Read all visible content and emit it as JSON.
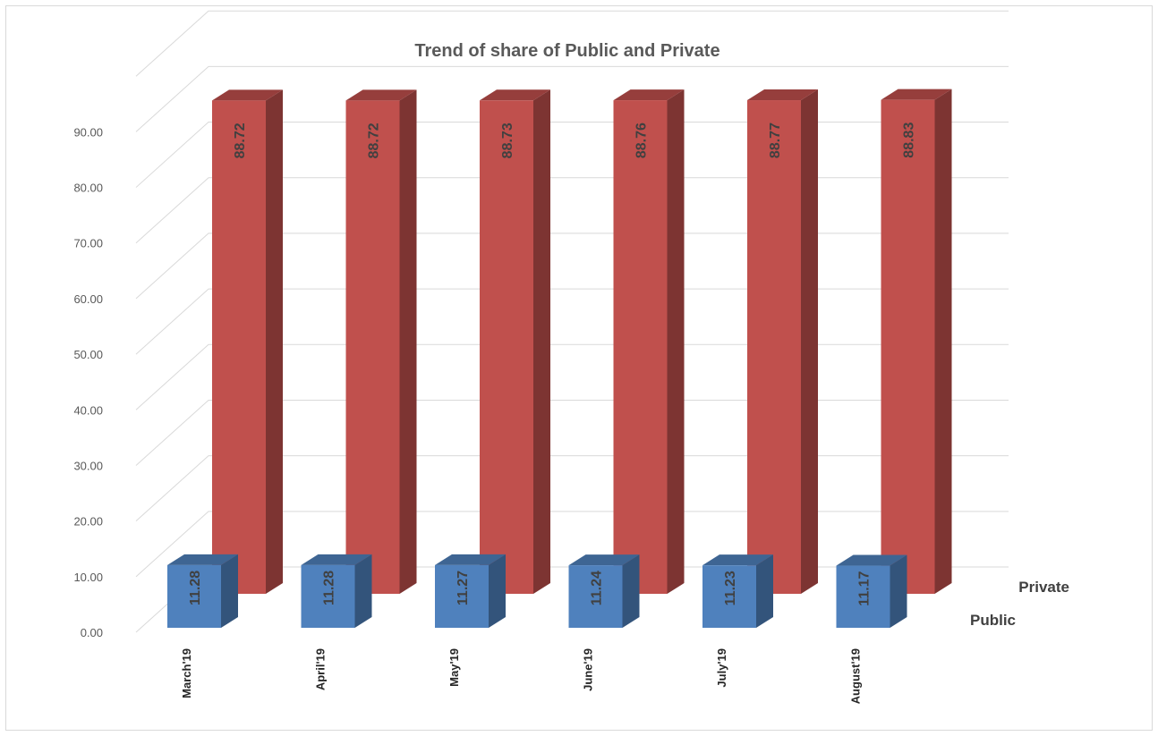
{
  "chart_data": {
    "type": "bar",
    "title": "Trend of  share of Public and Private",
    "categories": [
      "March'19",
      "April'19",
      "May'19",
      "June'19",
      "July'19",
      "August'19"
    ],
    "series": [
      {
        "name": "Public",
        "values": [
          11.28,
          11.28,
          11.27,
          11.24,
          11.23,
          11.17
        ],
        "labels": [
          "11.28",
          "11.28",
          "11.27",
          "11.24",
          "11.23",
          "11.17"
        ],
        "color": "#4f81bd"
      },
      {
        "name": "Private",
        "values": [
          88.72,
          88.72,
          88.73,
          88.76,
          88.77,
          88.83
        ],
        "labels": [
          "88.72",
          "88.72",
          "88.73",
          "88.76",
          "88.77",
          "88.83"
        ],
        "color": "#c0504d"
      }
    ],
    "yticks": [
      "0.00",
      "10.00",
      "20.00",
      "30.00",
      "40.00",
      "50.00",
      "60.00",
      "70.00",
      "80.00",
      "90.00"
    ],
    "ylim": [
      0,
      90
    ],
    "grid": true,
    "style": "3d-columns"
  }
}
